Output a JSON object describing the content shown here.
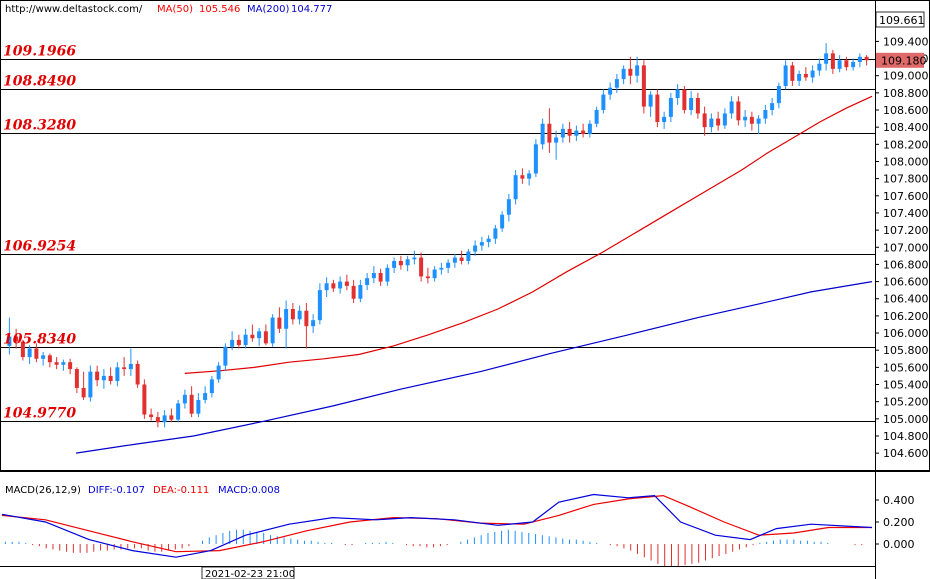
{
  "header": {
    "url": "http://www.deltastock.com/",
    "ma50_label": "MA(50)",
    "ma50_value": "105.546",
    "ma200_label": "MA(200)",
    "ma200_value": "104.777"
  },
  "price_axis": {
    "top_value": "109.661",
    "current_price": "109.180",
    "ticks": [
      "109.400",
      "109.200",
      "109.000",
      "108.800",
      "108.600",
      "108.400",
      "108.200",
      "108.000",
      "107.800",
      "107.600",
      "107.400",
      "107.200",
      "107.000",
      "106.800",
      "106.600",
      "106.400",
      "106.200",
      "106.000",
      "105.800",
      "105.600",
      "105.400",
      "105.200",
      "105.000",
      "104.800",
      "104.600"
    ]
  },
  "macd_panel": {
    "label": "MACD(26,12,9)",
    "diff_label": "DIFF:-0.107",
    "dea_label": "DEA:-0.111",
    "macd_label": "MACD:0.008",
    "ticks": [
      "0.400",
      "0.200",
      "0.000"
    ]
  },
  "time_label": "2021-02-23 21:00",
  "colors": {
    "up": "#1e90ff",
    "down": "#e03030",
    "ma50": "#e00000",
    "ma200": "#0000cc",
    "level_text": "#e00000",
    "current_price_bg": "#e06a6a",
    "macd_diff": "#0000dd",
    "macd_dea": "#ee0000"
  },
  "chart_data": {
    "type": "candlestick",
    "y_range": [
      104.45,
      109.661
    ],
    "levels": [
      "109.1966",
      "108.8490",
      "108.3280",
      "106.9254",
      "105.8340",
      "104.9770"
    ],
    "level_values": [
      109.1966,
      108.849,
      108.328,
      106.9254,
      105.834,
      104.977
    ],
    "candles": [
      {
        "o": 105.85,
        "h": 106.18,
        "l": 105.75,
        "c": 105.96
      },
      {
        "o": 105.96,
        "h": 106.05,
        "l": 105.82,
        "c": 105.9
      },
      {
        "o": 105.9,
        "h": 105.92,
        "l": 105.68,
        "c": 105.72
      },
      {
        "o": 105.72,
        "h": 105.86,
        "l": 105.64,
        "c": 105.82
      },
      {
        "o": 105.82,
        "h": 105.88,
        "l": 105.66,
        "c": 105.7
      },
      {
        "o": 105.7,
        "h": 105.78,
        "l": 105.62,
        "c": 105.74
      },
      {
        "o": 105.74,
        "h": 105.76,
        "l": 105.6,
        "c": 105.66
      },
      {
        "o": 105.66,
        "h": 105.72,
        "l": 105.58,
        "c": 105.63
      },
      {
        "o": 105.63,
        "h": 105.69,
        "l": 105.56,
        "c": 105.66
      },
      {
        "o": 105.66,
        "h": 105.7,
        "l": 105.52,
        "c": 105.58
      },
      {
        "o": 105.58,
        "h": 105.6,
        "l": 105.3,
        "c": 105.36
      },
      {
        "o": 105.36,
        "h": 105.55,
        "l": 105.22,
        "c": 105.25
      },
      {
        "o": 105.25,
        "h": 105.62,
        "l": 105.2,
        "c": 105.55
      },
      {
        "o": 105.55,
        "h": 105.62,
        "l": 105.38,
        "c": 105.45
      },
      {
        "o": 105.45,
        "h": 105.58,
        "l": 105.35,
        "c": 105.5
      },
      {
        "o": 105.5,
        "h": 105.6,
        "l": 105.4,
        "c": 105.44
      },
      {
        "o": 105.44,
        "h": 105.66,
        "l": 105.38,
        "c": 105.6
      },
      {
        "o": 105.6,
        "h": 105.72,
        "l": 105.5,
        "c": 105.58
      },
      {
        "o": 105.58,
        "h": 105.82,
        "l": 105.5,
        "c": 105.64
      },
      {
        "o": 105.64,
        "h": 105.68,
        "l": 105.36,
        "c": 105.4
      },
      {
        "o": 105.4,
        "h": 105.46,
        "l": 105.0,
        "c": 105.05
      },
      {
        "o": 105.05,
        "h": 105.12,
        "l": 104.98,
        "c": 105.02
      },
      {
        "o": 105.02,
        "h": 105.08,
        "l": 104.9,
        "c": 104.96
      },
      {
        "o": 104.96,
        "h": 105.1,
        "l": 104.9,
        "c": 105.04
      },
      {
        "o": 105.04,
        "h": 105.12,
        "l": 104.96,
        "c": 104.99
      },
      {
        "o": 104.99,
        "h": 105.22,
        "l": 104.96,
        "c": 105.18
      },
      {
        "o": 105.18,
        "h": 105.34,
        "l": 105.12,
        "c": 105.28
      },
      {
        "o": 105.28,
        "h": 105.38,
        "l": 105.02,
        "c": 105.06
      },
      {
        "o": 105.06,
        "h": 105.3,
        "l": 105.02,
        "c": 105.22
      },
      {
        "o": 105.22,
        "h": 105.38,
        "l": 105.18,
        "c": 105.3
      },
      {
        "o": 105.3,
        "h": 105.5,
        "l": 105.25,
        "c": 105.46
      },
      {
        "o": 105.46,
        "h": 105.66,
        "l": 105.42,
        "c": 105.62
      },
      {
        "o": 105.62,
        "h": 105.88,
        "l": 105.56,
        "c": 105.84
      },
      {
        "o": 105.84,
        "h": 106.02,
        "l": 105.8,
        "c": 105.92
      },
      {
        "o": 105.92,
        "h": 105.98,
        "l": 105.82,
        "c": 105.86
      },
      {
        "o": 105.86,
        "h": 106.05,
        "l": 105.82,
        "c": 105.98
      },
      {
        "o": 105.98,
        "h": 106.1,
        "l": 105.9,
        "c": 105.94
      },
      {
        "o": 105.94,
        "h": 106.06,
        "l": 105.85,
        "c": 106.02
      },
      {
        "o": 106.02,
        "h": 106.1,
        "l": 105.86,
        "c": 105.88
      },
      {
        "o": 105.88,
        "h": 106.22,
        "l": 105.84,
        "c": 106.18
      },
      {
        "o": 106.18,
        "h": 106.3,
        "l": 106.0,
        "c": 106.05
      },
      {
        "o": 106.05,
        "h": 106.38,
        "l": 105.82,
        "c": 106.28
      },
      {
        "o": 106.28,
        "h": 106.35,
        "l": 106.1,
        "c": 106.16
      },
      {
        "o": 106.16,
        "h": 106.32,
        "l": 106.1,
        "c": 106.26
      },
      {
        "o": 106.26,
        "h": 106.35,
        "l": 105.82,
        "c": 106.08
      },
      {
        "o": 106.08,
        "h": 106.22,
        "l": 106.0,
        "c": 106.15
      },
      {
        "o": 106.15,
        "h": 106.58,
        "l": 106.1,
        "c": 106.5
      },
      {
        "o": 106.5,
        "h": 106.65,
        "l": 106.42,
        "c": 106.58
      },
      {
        "o": 106.58,
        "h": 106.62,
        "l": 106.48,
        "c": 106.52
      },
      {
        "o": 106.52,
        "h": 106.66,
        "l": 106.46,
        "c": 106.6
      },
      {
        "o": 106.6,
        "h": 106.68,
        "l": 106.5,
        "c": 106.55
      },
      {
        "o": 106.55,
        "h": 106.62,
        "l": 106.35,
        "c": 106.4
      },
      {
        "o": 106.4,
        "h": 106.62,
        "l": 106.36,
        "c": 106.56
      },
      {
        "o": 106.56,
        "h": 106.7,
        "l": 106.5,
        "c": 106.64
      },
      {
        "o": 106.64,
        "h": 106.78,
        "l": 106.58,
        "c": 106.7
      },
      {
        "o": 106.7,
        "h": 106.75,
        "l": 106.55,
        "c": 106.6
      },
      {
        "o": 106.6,
        "h": 106.8,
        "l": 106.55,
        "c": 106.76
      },
      {
        "o": 106.76,
        "h": 106.88,
        "l": 106.7,
        "c": 106.84
      },
      {
        "o": 106.84,
        "h": 106.9,
        "l": 106.74,
        "c": 106.79
      },
      {
        "o": 106.79,
        "h": 106.9,
        "l": 106.72,
        "c": 106.86
      },
      {
        "o": 106.86,
        "h": 106.96,
        "l": 106.8,
        "c": 106.88
      },
      {
        "o": 106.88,
        "h": 106.94,
        "l": 106.6,
        "c": 106.66
      },
      {
        "o": 106.66,
        "h": 106.76,
        "l": 106.58,
        "c": 106.64
      },
      {
        "o": 106.64,
        "h": 106.78,
        "l": 106.6,
        "c": 106.74
      },
      {
        "o": 106.74,
        "h": 106.82,
        "l": 106.68,
        "c": 106.76
      },
      {
        "o": 106.76,
        "h": 106.86,
        "l": 106.7,
        "c": 106.82
      },
      {
        "o": 106.82,
        "h": 106.92,
        "l": 106.76,
        "c": 106.88
      },
      {
        "o": 106.88,
        "h": 106.96,
        "l": 106.8,
        "c": 106.84
      },
      {
        "o": 106.84,
        "h": 106.98,
        "l": 106.8,
        "c": 106.95
      },
      {
        "o": 106.95,
        "h": 107.08,
        "l": 106.9,
        "c": 107.02
      },
      {
        "o": 107.02,
        "h": 107.12,
        "l": 106.96,
        "c": 107.06
      },
      {
        "o": 107.06,
        "h": 107.14,
        "l": 107.0,
        "c": 107.1
      },
      {
        "o": 107.1,
        "h": 107.26,
        "l": 107.04,
        "c": 107.22
      },
      {
        "o": 107.22,
        "h": 107.42,
        "l": 107.18,
        "c": 107.38
      },
      {
        "o": 107.38,
        "h": 107.62,
        "l": 107.3,
        "c": 107.56
      },
      {
        "o": 107.56,
        "h": 107.9,
        "l": 107.5,
        "c": 107.84
      },
      {
        "o": 107.84,
        "h": 107.92,
        "l": 107.74,
        "c": 107.8
      },
      {
        "o": 107.8,
        "h": 107.9,
        "l": 107.72,
        "c": 107.86
      },
      {
        "o": 107.86,
        "h": 108.26,
        "l": 107.82,
        "c": 108.2
      },
      {
        "o": 108.2,
        "h": 108.5,
        "l": 108.14,
        "c": 108.44
      },
      {
        "o": 108.44,
        "h": 108.62,
        "l": 108.1,
        "c": 108.22
      },
      {
        "o": 108.22,
        "h": 108.36,
        "l": 108.02,
        "c": 108.28
      },
      {
        "o": 108.28,
        "h": 108.44,
        "l": 108.22,
        "c": 108.38
      },
      {
        "o": 108.38,
        "h": 108.46,
        "l": 108.22,
        "c": 108.3
      },
      {
        "o": 108.3,
        "h": 108.42,
        "l": 108.24,
        "c": 108.36
      },
      {
        "o": 108.36,
        "h": 108.44,
        "l": 108.28,
        "c": 108.32
      },
      {
        "o": 108.32,
        "h": 108.48,
        "l": 108.28,
        "c": 108.44
      },
      {
        "o": 108.44,
        "h": 108.64,
        "l": 108.4,
        "c": 108.6
      },
      {
        "o": 108.6,
        "h": 108.84,
        "l": 108.56,
        "c": 108.78
      },
      {
        "o": 108.78,
        "h": 108.92,
        "l": 108.72,
        "c": 108.86
      },
      {
        "o": 108.86,
        "h": 109.02,
        "l": 108.8,
        "c": 108.96
      },
      {
        "o": 108.96,
        "h": 109.12,
        "l": 108.9,
        "c": 109.08
      },
      {
        "o": 109.08,
        "h": 109.22,
        "l": 108.9,
        "c": 109.0
      },
      {
        "o": 109.0,
        "h": 109.22,
        "l": 108.92,
        "c": 109.12
      },
      {
        "o": 109.12,
        "h": 109.18,
        "l": 108.56,
        "c": 108.64
      },
      {
        "o": 108.64,
        "h": 108.82,
        "l": 108.52,
        "c": 108.78
      },
      {
        "o": 108.78,
        "h": 108.84,
        "l": 108.4,
        "c": 108.46
      },
      {
        "o": 108.46,
        "h": 108.58,
        "l": 108.38,
        "c": 108.52
      },
      {
        "o": 108.52,
        "h": 108.8,
        "l": 108.46,
        "c": 108.74
      },
      {
        "o": 108.74,
        "h": 108.9,
        "l": 108.66,
        "c": 108.84
      },
      {
        "o": 108.84,
        "h": 108.88,
        "l": 108.56,
        "c": 108.6
      },
      {
        "o": 108.6,
        "h": 108.82,
        "l": 108.54,
        "c": 108.74
      },
      {
        "o": 108.74,
        "h": 108.8,
        "l": 108.5,
        "c": 108.56
      },
      {
        "o": 108.56,
        "h": 108.64,
        "l": 108.3,
        "c": 108.4
      },
      {
        "o": 108.4,
        "h": 108.56,
        "l": 108.34,
        "c": 108.5
      },
      {
        "o": 108.5,
        "h": 108.58,
        "l": 108.36,
        "c": 108.42
      },
      {
        "o": 108.42,
        "h": 108.62,
        "l": 108.38,
        "c": 108.56
      },
      {
        "o": 108.56,
        "h": 108.76,
        "l": 108.5,
        "c": 108.7
      },
      {
        "o": 108.7,
        "h": 108.76,
        "l": 108.42,
        "c": 108.48
      },
      {
        "o": 108.48,
        "h": 108.6,
        "l": 108.4,
        "c": 108.52
      },
      {
        "o": 108.52,
        "h": 108.58,
        "l": 108.36,
        "c": 108.44
      },
      {
        "o": 108.44,
        "h": 108.54,
        "l": 108.32,
        "c": 108.5
      },
      {
        "o": 108.5,
        "h": 108.66,
        "l": 108.44,
        "c": 108.6
      },
      {
        "o": 108.6,
        "h": 108.74,
        "l": 108.54,
        "c": 108.68
      },
      {
        "o": 108.68,
        "h": 108.92,
        "l": 108.62,
        "c": 108.88
      },
      {
        "o": 108.88,
        "h": 109.18,
        "l": 108.84,
        "c": 109.12
      },
      {
        "o": 109.12,
        "h": 109.16,
        "l": 108.88,
        "c": 108.94
      },
      {
        "o": 108.94,
        "h": 109.06,
        "l": 108.88,
        "c": 109.02
      },
      {
        "o": 109.02,
        "h": 109.1,
        "l": 108.94,
        "c": 108.98
      },
      {
        "o": 108.98,
        "h": 109.12,
        "l": 108.92,
        "c": 109.06
      },
      {
        "o": 109.06,
        "h": 109.2,
        "l": 109.0,
        "c": 109.14
      },
      {
        "o": 109.14,
        "h": 109.38,
        "l": 109.06,
        "c": 109.26
      },
      {
        "o": 109.26,
        "h": 109.3,
        "l": 109.02,
        "c": 109.08
      },
      {
        "o": 109.08,
        "h": 109.24,
        "l": 109.04,
        "c": 109.18
      },
      {
        "o": 109.18,
        "h": 109.22,
        "l": 109.06,
        "c": 109.1
      },
      {
        "o": 109.1,
        "h": 109.2,
        "l": 109.06,
        "c": 109.16
      },
      {
        "o": 109.16,
        "h": 109.26,
        "l": 109.1,
        "c": 109.22
      },
      {
        "o": 109.22,
        "h": 109.24,
        "l": 109.12,
        "c": 109.18
      }
    ],
    "ma50": [
      [
        0.21,
        105.53
      ],
      [
        0.25,
        105.56
      ],
      [
        0.29,
        105.6
      ],
      [
        0.33,
        105.66
      ],
      [
        0.37,
        105.7
      ],
      [
        0.41,
        105.75
      ],
      [
        0.45,
        105.85
      ],
      [
        0.49,
        105.98
      ],
      [
        0.53,
        106.12
      ],
      [
        0.57,
        106.28
      ],
      [
        0.61,
        106.48
      ],
      [
        0.65,
        106.72
      ],
      [
        0.69,
        106.94
      ],
      [
        0.73,
        107.18
      ],
      [
        0.77,
        107.42
      ],
      [
        0.81,
        107.66
      ],
      [
        0.85,
        107.9
      ],
      [
        0.88,
        108.1
      ],
      [
        0.91,
        108.28
      ],
      [
        0.94,
        108.46
      ],
      [
        0.97,
        108.62
      ],
      [
        1.0,
        108.76
      ]
    ],
    "ma200": [
      [
        0.085,
        104.6
      ],
      [
        0.15,
        104.7
      ],
      [
        0.22,
        104.8
      ],
      [
        0.3,
        104.97
      ],
      [
        0.38,
        105.15
      ],
      [
        0.46,
        105.35
      ],
      [
        0.55,
        105.55
      ],
      [
        0.63,
        105.76
      ],
      [
        0.72,
        105.98
      ],
      [
        0.8,
        106.18
      ],
      [
        0.87,
        106.34
      ],
      [
        0.93,
        106.48
      ],
      [
        1.0,
        106.6
      ]
    ],
    "macd_diff": [
      [
        0.0,
        0.27
      ],
      [
        0.05,
        0.2
      ],
      [
        0.1,
        0.04
      ],
      [
        0.15,
        -0.06
      ],
      [
        0.2,
        -0.12
      ],
      [
        0.24,
        -0.06
      ],
      [
        0.28,
        0.08
      ],
      [
        0.33,
        0.18
      ],
      [
        0.38,
        0.24
      ],
      [
        0.43,
        0.22
      ],
      [
        0.47,
        0.24
      ],
      [
        0.52,
        0.22
      ],
      [
        0.57,
        0.17
      ],
      [
        0.61,
        0.2
      ],
      [
        0.64,
        0.38
      ],
      [
        0.68,
        0.45
      ],
      [
        0.72,
        0.42
      ],
      [
        0.75,
        0.44
      ],
      [
        0.78,
        0.2
      ],
      [
        0.82,
        0.08
      ],
      [
        0.86,
        0.04
      ],
      [
        0.89,
        0.14
      ],
      [
        0.93,
        0.18
      ],
      [
        1.0,
        0.15
      ]
    ],
    "macd_dea": [
      [
        0.0,
        0.26
      ],
      [
        0.05,
        0.22
      ],
      [
        0.1,
        0.12
      ],
      [
        0.15,
        0.02
      ],
      [
        0.2,
        -0.07
      ],
      [
        0.25,
        -0.06
      ],
      [
        0.3,
        0.02
      ],
      [
        0.35,
        0.12
      ],
      [
        0.4,
        0.2
      ],
      [
        0.45,
        0.24
      ],
      [
        0.5,
        0.23
      ],
      [
        0.55,
        0.19
      ],
      [
        0.6,
        0.18
      ],
      [
        0.64,
        0.26
      ],
      [
        0.68,
        0.36
      ],
      [
        0.72,
        0.41
      ],
      [
        0.76,
        0.44
      ],
      [
        0.79,
        0.34
      ],
      [
        0.83,
        0.2
      ],
      [
        0.87,
        0.08
      ],
      [
        0.91,
        0.1
      ],
      [
        0.95,
        0.15
      ],
      [
        1.0,
        0.15
      ]
    ],
    "macd_hist": [
      0.02,
      0.02,
      0.02,
      0.01,
      -0.01,
      -0.02,
      -0.04,
      -0.05,
      -0.06,
      -0.07,
      -0.08,
      -0.08,
      -0.08,
      -0.07,
      -0.06,
      -0.06,
      -0.05,
      -0.05,
      -0.04,
      -0.04,
      -0.04,
      -0.06,
      -0.07,
      -0.07,
      -0.06,
      -0.05,
      -0.04,
      -0.02,
      0.0,
      0.03,
      0.06,
      0.08,
      0.1,
      0.12,
      0.13,
      0.13,
      0.12,
      0.11,
      0.1,
      0.08,
      0.07,
      0.06,
      0.05,
      0.04,
      0.03,
      0.03,
      0.02,
      0.01,
      0.01,
      0.0,
      -0.01,
      -0.01,
      0.0,
      0.01,
      0.01,
      0.01,
      0.02,
      0.01,
      0.0,
      -0.01,
      -0.02,
      -0.02,
      -0.03,
      -0.03,
      -0.02,
      -0.01,
      0.0,
      0.02,
      0.04,
      0.06,
      0.08,
      0.1,
      0.11,
      0.12,
      0.13,
      0.12,
      0.11,
      0.1,
      0.09,
      0.08,
      0.07,
      0.06,
      0.05,
      0.04,
      0.04,
      0.03,
      0.02,
      0.01,
      0.0,
      -0.01,
      -0.02,
      -0.04,
      -0.06,
      -0.09,
      -0.12,
      -0.15,
      -0.18,
      -0.2,
      -0.2,
      -0.2,
      -0.19,
      -0.18,
      -0.17,
      -0.15,
      -0.13,
      -0.11,
      -0.09,
      -0.07,
      -0.05,
      -0.03,
      -0.01,
      0.01,
      0.02,
      0.03,
      0.04,
      0.04,
      0.04,
      0.03,
      0.03,
      0.02,
      0.02,
      0.01,
      0.0,
      0.0,
      0.0,
      -0.01,
      -0.01,
      0.0
    ]
  }
}
